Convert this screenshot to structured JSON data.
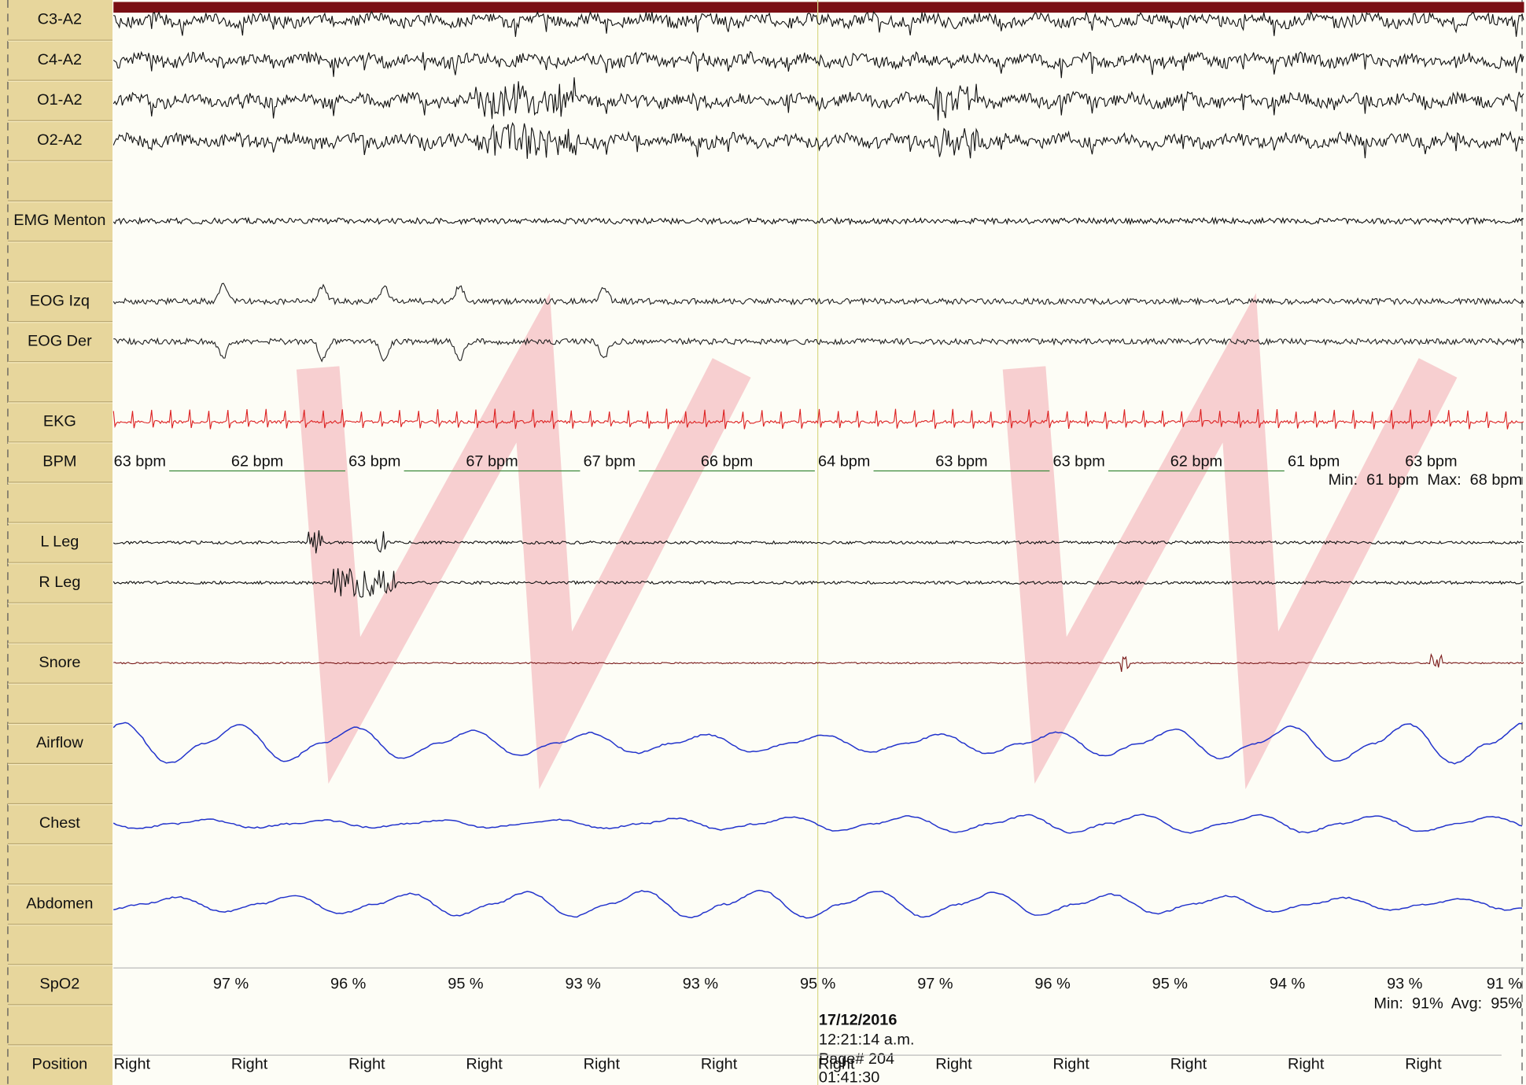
{
  "channels": [
    "C3-A2",
    "C4-A2",
    "O1-A2",
    "O2-A2",
    "EMG Menton",
    "EOG Izq",
    "EOG Der",
    "EKG",
    "BPM",
    "L Leg",
    "R Leg",
    "Snore",
    "Airflow",
    "Chest",
    "Abdomen",
    "SpO2",
    "Position"
  ],
  "bpm": {
    "values": [
      "63 bpm",
      "62 bpm",
      "63 bpm",
      "67 bpm",
      "67 bpm",
      "66 bpm",
      "64 bpm",
      "63 bpm",
      "63 bpm",
      "62 bpm",
      "61 bpm",
      "63 bpm"
    ],
    "summary": "Min:  61 bpm  Max:  68 bpm"
  },
  "spo2": {
    "values": [
      "97 %",
      "96 %",
      "95 %",
      "93 %",
      "93 %",
      "95 %",
      "97 %",
      "96 %",
      "95 %",
      "94 %",
      "93 %",
      "91 %"
    ],
    "summary": "Min:  91%  Avg:  95%"
  },
  "position": [
    "Right",
    "Right",
    "Right",
    "Right",
    "Right",
    "Right",
    "Right",
    "Right",
    "Right",
    "Right",
    "Right",
    "Right"
  ],
  "footer": {
    "date": "17/12/2016",
    "time": "12:21:14 a.m.",
    "page": "Page# 204",
    "elapsed": "01:41:30"
  }
}
